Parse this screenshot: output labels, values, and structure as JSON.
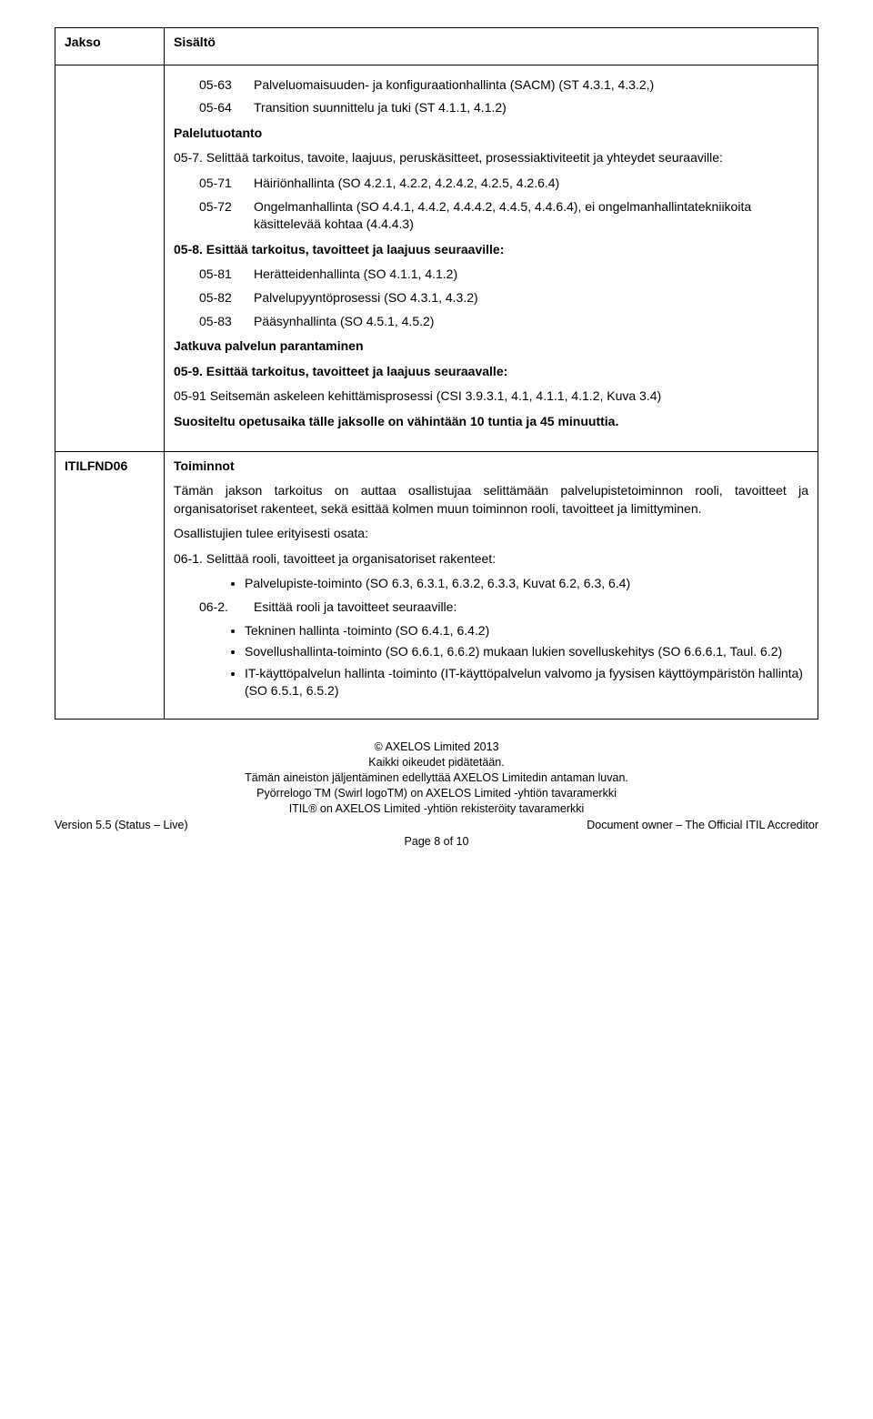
{
  "header": {
    "col_label": "Jakso",
    "col_content": "Sisältö"
  },
  "sec05": {
    "r63": {
      "num": "05-63",
      "txt": "Palveluomaisuuden- ja konfiguraationhallinta (SACM) (ST 4.3.1, 4.3.2,)"
    },
    "r64": {
      "num": "05-64",
      "txt": "Transition suunnittelu ja tuki (ST 4.1.1, 4.1.2)"
    },
    "palelut": "Palelutuotanto",
    "h7": "05-7. Selittää tarkoitus, tavoite, laajuus, peruskäsitteet, prosessiaktiviteetit ja yhteydet seuraaville:",
    "r71": {
      "num": "05-71",
      "txt": "Häiriönhallinta (SO 4.2.1, 4.2.2, 4.2.4.2, 4.2.5, 4.2.6.4)"
    },
    "r72": {
      "num": "05-72",
      "txt": "Ongelmanhallinta (SO 4.4.1, 4.4.2, 4.4.4.2, 4.4.5, 4.4.6.4), ei ongelmanhallintatekniikoita käsittelevää kohtaa (4.4.4.3)"
    },
    "h8": "05-8. Esittää tarkoitus, tavoitteet ja laajuus seuraaville:",
    "r81": {
      "num": "05-81",
      "txt": "Herätteidenhallinta (SO 4.1.1, 4.1.2)"
    },
    "r82": {
      "num": "05-82",
      "txt": "Palvelupyyntöprosessi (SO 4.3.1, 4.3.2)"
    },
    "r83": {
      "num": "05-83",
      "txt": "Pääsynhallinta (SO 4.5.1, 4.5.2)"
    },
    "jatkuva": "Jatkuva palvelun parantaminen",
    "h9": "05-9. Esittää tarkoitus, tavoitteet ja laajuus seuraavalle:",
    "r91": "05-91 Seitsemän askeleen kehittämisprosessi (CSI 3.9.3.1, 4.1, 4.1.1, 4.1.2, Kuva 3.4)",
    "suositeltu": "Suositeltu opetusaika tälle jaksolle on vähintään 10 tuntia ja 45 minuuttia."
  },
  "sec06": {
    "code": "ITILFND06",
    "title": "Toiminnot",
    "intro": "Tämän jakson tarkoitus on auttaa osallistujaa selittämään palvelupistetoiminnon rooli, tavoitteet ja organisatoriset rakenteet, sekä esittää kolmen muun toiminnon rooli, tavoitteet ja limittyminen.",
    "osall": "Osallistujien tulee erityisesti osata:",
    "h1": "06-1. Selittää rooli, tavoitteet ja organisatoriset rakenteet:",
    "b1": "Palvelupiste-toiminto (SO 6.3, 6.3.1, 6.3.2, 6.3.3, Kuvat 6.2, 6.3, 6.4)",
    "h2": {
      "num": "06-2.",
      "txt": "Esittää rooli ja tavoitteet seuraaville:"
    },
    "b2a": "Tekninen hallinta -toiminto (SO 6.4.1, 6.4.2)",
    "b2b": "Sovellushallinta-toiminto (SO 6.6.1, 6.6.2) mukaan lukien sovelluskehitys (SO 6.6.6.1, Taul. 6.2)",
    "b2c": "IT-käyttöpalvelun hallinta -toiminto (IT-käyttöpalvelun valvomo ja fyysisen käyttöympäristön hallinta) (SO 6.5.1, 6.5.2)"
  },
  "footer": {
    "l1": "© AXELOS Limited 2013",
    "l2": "Kaikki oikeudet pidätetään.",
    "l3": "Tämän aineiston jäljentäminen edellyttää AXELOS Limitedin antaman luvan.",
    "l4": "Pyörrelogo TM (Swirl logoTM) on AXELOS Limited -yhtiön tavaramerkki",
    "l5": "ITIL® on AXELOS Limited -yhtiön rekisteröity tavaramerkki",
    "left": "Version 5.5 (Status – Live)",
    "right": "Document owner – The Official ITIL Accreditor",
    "page": "Page 8 of 10"
  }
}
